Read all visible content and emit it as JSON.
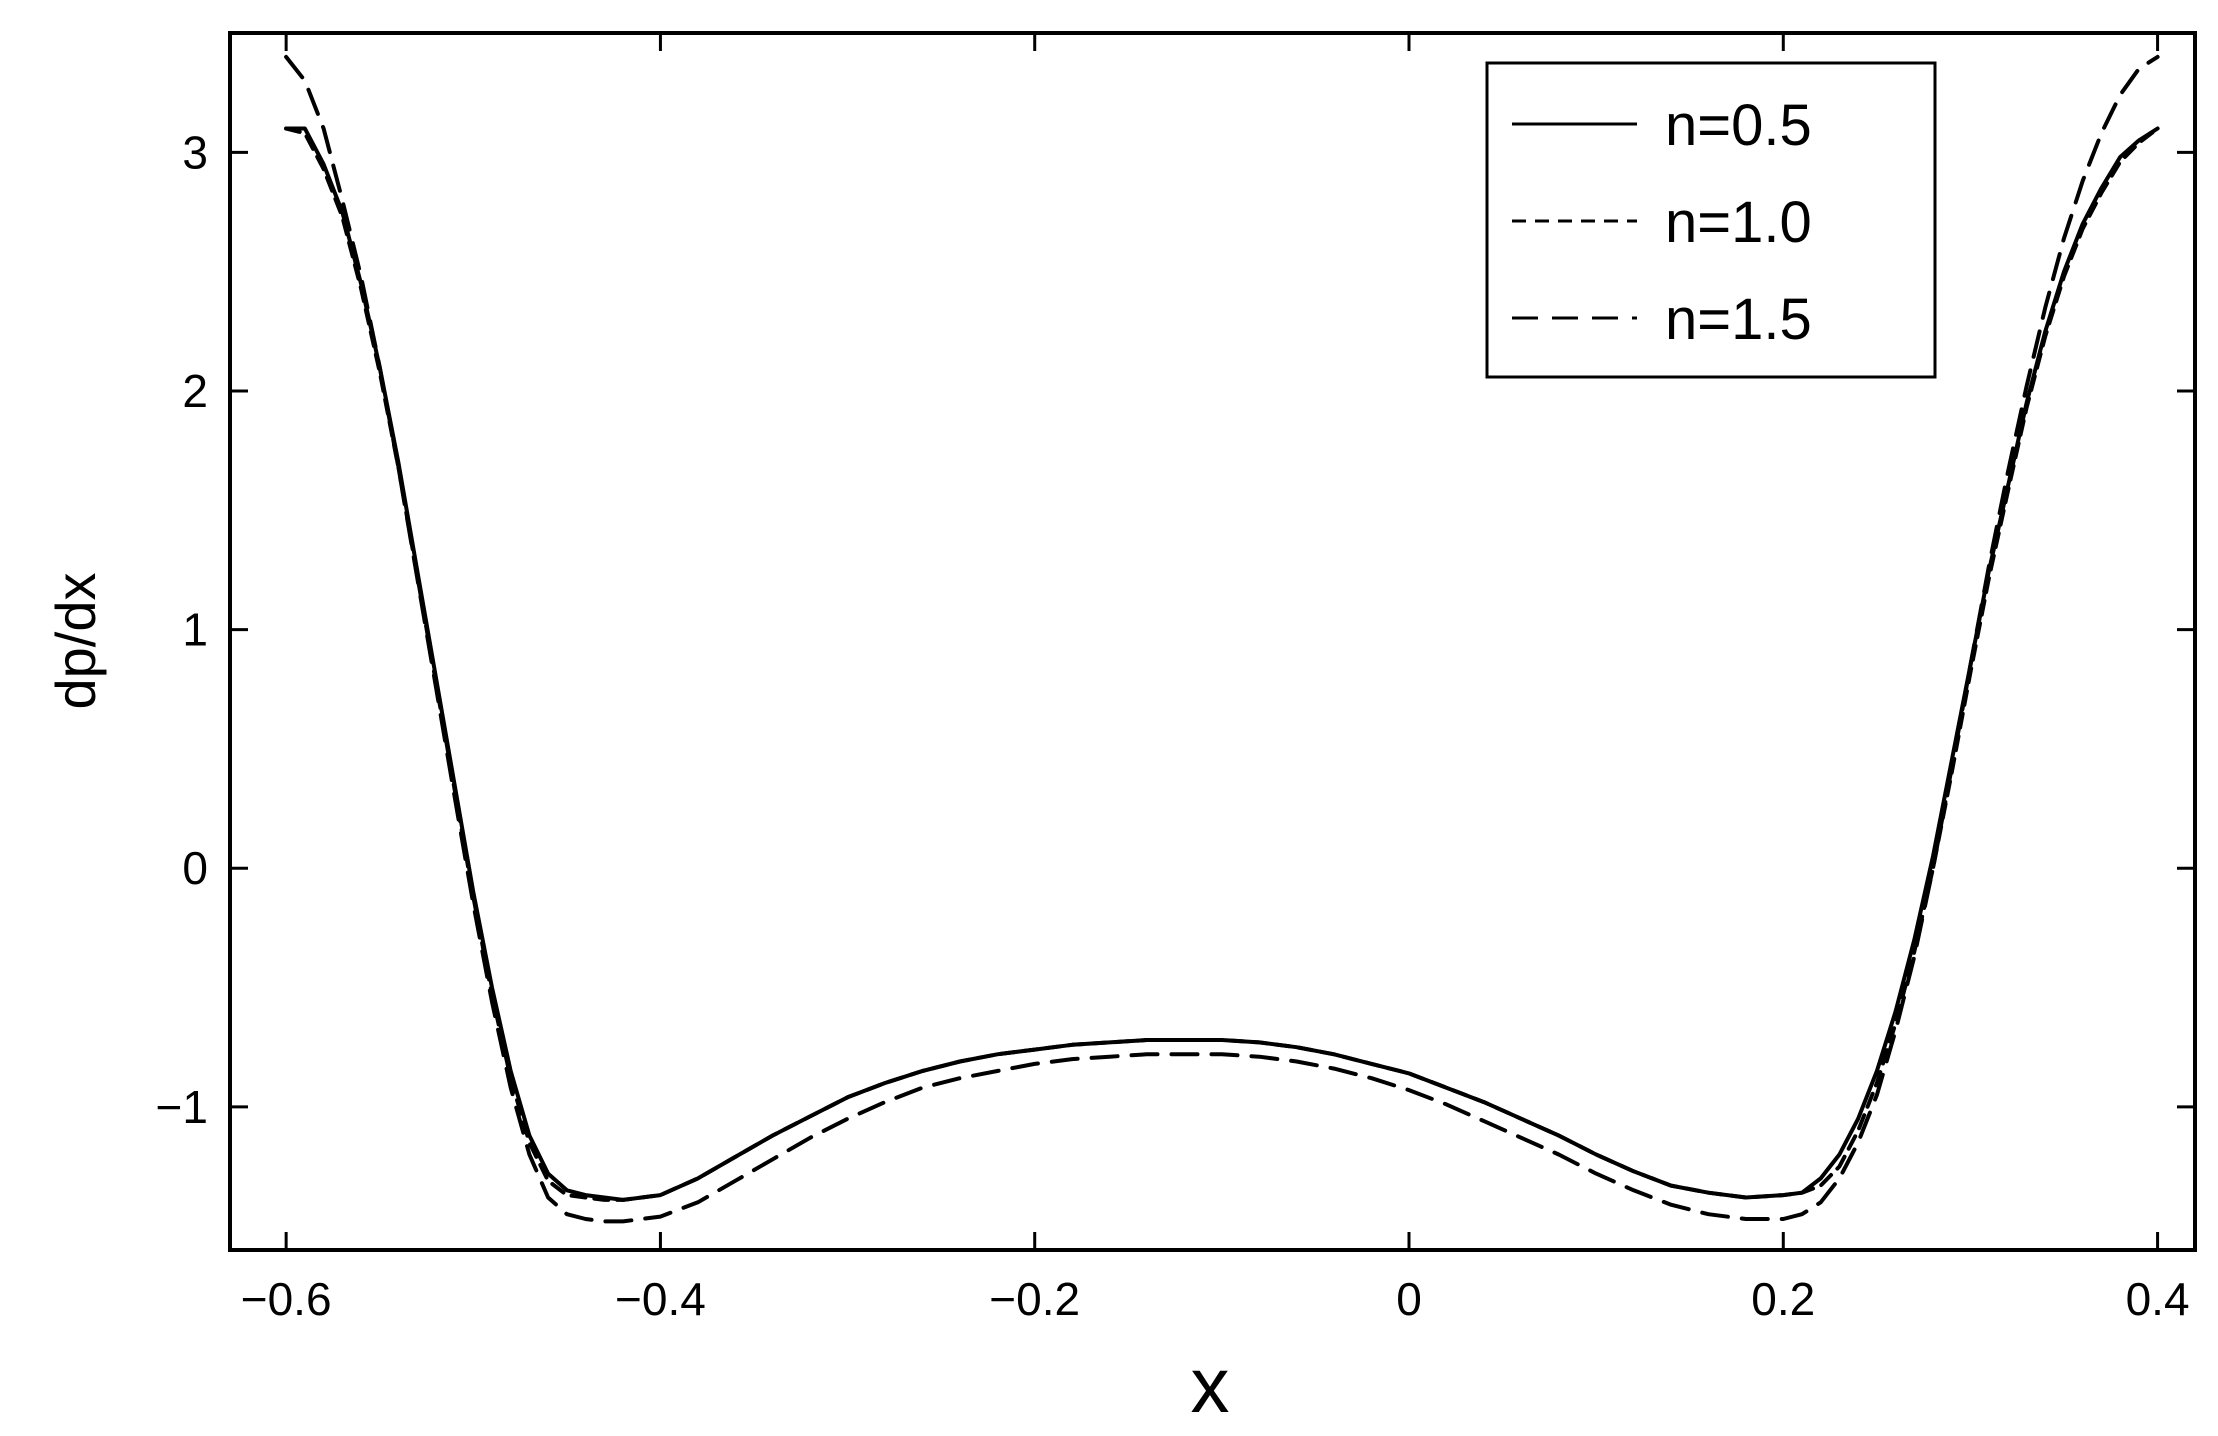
{
  "chart_data": {
    "type": "line",
    "title": "",
    "xlabel": "x",
    "ylabel": "dp/dx",
    "xlim": [
      -0.63,
      0.42
    ],
    "ylim": [
      -1.6,
      3.5
    ],
    "x_ticks": [
      {
        "value": -0.6,
        "label": "−0.6"
      },
      {
        "value": -0.4,
        "label": "−0.4"
      },
      {
        "value": -0.2,
        "label": "−0.2"
      },
      {
        "value": 0,
        "label": "0"
      },
      {
        "value": 0.2,
        "label": "0.2"
      },
      {
        "value": 0.4,
        "label": "0.4"
      }
    ],
    "y_ticks": [
      {
        "value": -1,
        "label": "−1"
      },
      {
        "value": 0,
        "label": "0"
      },
      {
        "value": 1,
        "label": "1"
      },
      {
        "value": 2,
        "label": "2"
      },
      {
        "value": 3,
        "label": "3"
      }
    ],
    "grid": false,
    "legend_position": "top-right",
    "series": [
      {
        "name": "n=0.5",
        "dash": "solid",
        "color": "#000000",
        "x": [
          -0.6,
          -0.59,
          -0.58,
          -0.57,
          -0.56,
          -0.55,
          -0.54,
          -0.53,
          -0.52,
          -0.51,
          -0.5,
          -0.49,
          -0.48,
          -0.47,
          -0.46,
          -0.45,
          -0.44,
          -0.43,
          -0.42,
          -0.41,
          -0.4,
          -0.38,
          -0.36,
          -0.34,
          -0.32,
          -0.3,
          -0.28,
          -0.26,
          -0.24,
          -0.22,
          -0.2,
          -0.18,
          -0.16,
          -0.14,
          -0.12,
          -0.1,
          -0.08,
          -0.06,
          -0.04,
          -0.02,
          0,
          0.02,
          0.04,
          0.06,
          0.08,
          0.1,
          0.12,
          0.14,
          0.16,
          0.18,
          0.2,
          0.21,
          0.22,
          0.23,
          0.24,
          0.25,
          0.26,
          0.27,
          0.28,
          0.29,
          0.3,
          0.31,
          0.32,
          0.33,
          0.34,
          0.35,
          0.36,
          0.37,
          0.38,
          0.39,
          0.4
        ],
        "y": [
          3.1,
          3.1,
          2.95,
          2.75,
          2.45,
          2.1,
          1.7,
          1.25,
          0.8,
          0.35,
          -0.1,
          -0.5,
          -0.85,
          -1.12,
          -1.28,
          -1.35,
          -1.37,
          -1.38,
          -1.39,
          -1.38,
          -1.37,
          -1.3,
          -1.21,
          -1.12,
          -1.04,
          -0.96,
          -0.9,
          -0.85,
          -0.81,
          -0.78,
          -0.76,
          -0.74,
          -0.73,
          -0.72,
          -0.72,
          -0.72,
          -0.73,
          -0.75,
          -0.78,
          -0.82,
          -0.86,
          -0.92,
          -0.98,
          -1.05,
          -1.12,
          -1.2,
          -1.27,
          -1.33,
          -1.36,
          -1.38,
          -1.37,
          -1.36,
          -1.3,
          -1.2,
          -1.05,
          -0.85,
          -0.6,
          -0.3,
          0.05,
          0.45,
          0.85,
          1.25,
          1.6,
          1.95,
          2.25,
          2.5,
          2.7,
          2.85,
          2.98,
          3.05,
          3.1
        ]
      },
      {
        "name": "n=1.0",
        "dash": "short",
        "color": "#000000",
        "x": [
          -0.6,
          -0.59,
          -0.58,
          -0.57,
          -0.56,
          -0.55,
          -0.54,
          -0.53,
          -0.52,
          -0.51,
          -0.5,
          -0.49,
          -0.48,
          -0.47,
          -0.46,
          -0.45,
          -0.44,
          -0.43,
          -0.42,
          -0.41,
          -0.4,
          -0.38,
          -0.36,
          -0.34,
          -0.32,
          -0.3,
          -0.28,
          -0.26,
          -0.24,
          -0.22,
          -0.2,
          -0.18,
          -0.16,
          -0.14,
          -0.12,
          -0.1,
          -0.08,
          -0.06,
          -0.04,
          -0.02,
          0,
          0.02,
          0.04,
          0.06,
          0.08,
          0.1,
          0.12,
          0.14,
          0.16,
          0.18,
          0.2,
          0.21,
          0.22,
          0.23,
          0.24,
          0.25,
          0.26,
          0.27,
          0.28,
          0.29,
          0.3,
          0.31,
          0.32,
          0.33,
          0.34,
          0.35,
          0.36,
          0.37,
          0.38,
          0.39,
          0.4
        ],
        "y": [
          3.1,
          3.08,
          2.93,
          2.73,
          2.43,
          2.08,
          1.68,
          1.23,
          0.78,
          0.33,
          -0.12,
          -0.53,
          -0.88,
          -1.15,
          -1.31,
          -1.37,
          -1.38,
          -1.39,
          -1.39,
          -1.38,
          -1.37,
          -1.3,
          -1.21,
          -1.12,
          -1.04,
          -0.96,
          -0.9,
          -0.85,
          -0.81,
          -0.78,
          -0.76,
          -0.74,
          -0.73,
          -0.72,
          -0.72,
          -0.72,
          -0.73,
          -0.75,
          -0.78,
          -0.82,
          -0.86,
          -0.92,
          -0.98,
          -1.05,
          -1.12,
          -1.2,
          -1.27,
          -1.33,
          -1.36,
          -1.38,
          -1.37,
          -1.36,
          -1.33,
          -1.25,
          -1.1,
          -0.9,
          -0.65,
          -0.35,
          0.0,
          0.4,
          0.82,
          1.22,
          1.58,
          1.93,
          2.23,
          2.48,
          2.68,
          2.83,
          2.96,
          3.04,
          3.1
        ]
      },
      {
        "name": "n=1.5",
        "dash": "long",
        "color": "#000000",
        "x": [
          -0.6,
          -0.59,
          -0.58,
          -0.57,
          -0.56,
          -0.55,
          -0.54,
          -0.53,
          -0.52,
          -0.51,
          -0.5,
          -0.49,
          -0.48,
          -0.47,
          -0.46,
          -0.45,
          -0.44,
          -0.43,
          -0.42,
          -0.41,
          -0.4,
          -0.38,
          -0.36,
          -0.34,
          -0.32,
          -0.3,
          -0.28,
          -0.26,
          -0.24,
          -0.22,
          -0.2,
          -0.18,
          -0.16,
          -0.14,
          -0.12,
          -0.1,
          -0.08,
          -0.06,
          -0.04,
          -0.02,
          0,
          0.02,
          0.04,
          0.06,
          0.08,
          0.1,
          0.12,
          0.14,
          0.16,
          0.18,
          0.2,
          0.21,
          0.22,
          0.23,
          0.24,
          0.25,
          0.26,
          0.27,
          0.28,
          0.29,
          0.3,
          0.31,
          0.32,
          0.33,
          0.34,
          0.35,
          0.36,
          0.37,
          0.38,
          0.39,
          0.4
        ],
        "y": [
          3.4,
          3.3,
          3.1,
          2.8,
          2.48,
          2.1,
          1.68,
          1.22,
          0.76,
          0.3,
          -0.15,
          -0.56,
          -0.92,
          -1.2,
          -1.38,
          -1.45,
          -1.47,
          -1.48,
          -1.48,
          -1.47,
          -1.46,
          -1.4,
          -1.31,
          -1.22,
          -1.13,
          -1.05,
          -0.98,
          -0.92,
          -0.88,
          -0.85,
          -0.82,
          -0.8,
          -0.79,
          -0.78,
          -0.78,
          -0.78,
          -0.79,
          -0.81,
          -0.84,
          -0.88,
          -0.93,
          -0.99,
          -1.06,
          -1.13,
          -1.2,
          -1.28,
          -1.35,
          -1.41,
          -1.45,
          -1.47,
          -1.47,
          -1.45,
          -1.4,
          -1.3,
          -1.15,
          -0.95,
          -0.68,
          -0.37,
          0.0,
          0.42,
          0.85,
          1.27,
          1.66,
          2.02,
          2.35,
          2.64,
          2.88,
          3.08,
          3.24,
          3.35,
          3.4
        ]
      }
    ]
  }
}
